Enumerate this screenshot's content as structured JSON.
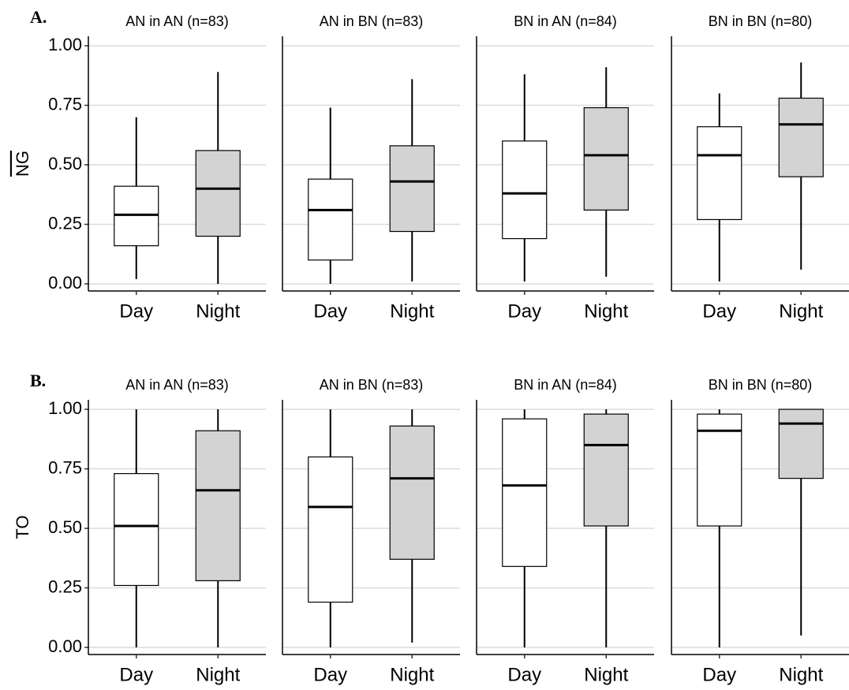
{
  "chart_data": [
    {
      "type": "box",
      "panel_label": "A.",
      "title": "AN in AN (n=83)",
      "ylabel": "NG",
      "categories": [
        "Day",
        "Night"
      ],
      "boxes": [
        {
          "color": "#ffffff",
          "min": 0.02,
          "q1": 0.16,
          "median": 0.29,
          "q3": 0.41,
          "max": 0.7
        },
        {
          "color": "#d3d3d3",
          "min": 0.0,
          "q1": 0.2,
          "median": 0.4,
          "q3": 0.56,
          "max": 0.89
        }
      ],
      "ylim": [
        -0.03,
        1.04
      ],
      "yticks": [
        {
          "value": 0,
          "label": "0.00"
        },
        {
          "value": 0.25,
          "label": "0.25"
        },
        {
          "value": 0.5,
          "label": "0.50"
        },
        {
          "value": 0.75,
          "label": "0.75"
        },
        {
          "value": 1,
          "label": "1.00"
        }
      ],
      "grid": true
    },
    {
      "type": "box",
      "title": "AN in BN (n=83)",
      "categories": [
        "Day",
        "Night"
      ],
      "boxes": [
        {
          "color": "#ffffff",
          "min": 0.0,
          "q1": 0.1,
          "median": 0.31,
          "q3": 0.44,
          "max": 0.74
        },
        {
          "color": "#d3d3d3",
          "min": 0.01,
          "q1": 0.22,
          "median": 0.43,
          "q3": 0.58,
          "max": 0.86
        }
      ],
      "ylim": [
        -0.03,
        1.04
      ],
      "yticks": [
        0,
        0.25,
        0.5,
        0.75,
        1
      ],
      "grid": true
    },
    {
      "type": "box",
      "title": "BN in AN (n=84)",
      "categories": [
        "Day",
        "Night"
      ],
      "boxes": [
        {
          "color": "#ffffff",
          "min": 0.01,
          "q1": 0.19,
          "median": 0.38,
          "q3": 0.6,
          "max": 0.88
        },
        {
          "color": "#d3d3d3",
          "min": 0.03,
          "q1": 0.31,
          "median": 0.54,
          "q3": 0.74,
          "max": 0.91
        }
      ],
      "ylim": [
        -0.03,
        1.04
      ],
      "yticks": [
        0,
        0.25,
        0.5,
        0.75,
        1
      ],
      "grid": true
    },
    {
      "type": "box",
      "title": "BN in BN (n=80)",
      "categories": [
        "Day",
        "Night"
      ],
      "boxes": [
        {
          "color": "#ffffff",
          "min": 0.01,
          "q1": 0.27,
          "median": 0.54,
          "q3": 0.66,
          "max": 0.8
        },
        {
          "color": "#d3d3d3",
          "min": 0.06,
          "q1": 0.45,
          "median": 0.67,
          "q3": 0.78,
          "max": 0.93
        }
      ],
      "ylim": [
        -0.03,
        1.04
      ],
      "yticks": [
        0,
        0.25,
        0.5,
        0.75,
        1
      ],
      "grid": true
    },
    {
      "type": "box",
      "panel_label": "B.",
      "title": "AN in AN (n=83)",
      "ylabel": "TO",
      "categories": [
        "Day",
        "Night"
      ],
      "boxes": [
        {
          "color": "#ffffff",
          "min": 0.0,
          "q1": 0.26,
          "median": 0.51,
          "q3": 0.73,
          "max": 1.0
        },
        {
          "color": "#d3d3d3",
          "min": 0.0,
          "q1": 0.28,
          "median": 0.66,
          "q3": 0.91,
          "max": 1.0
        }
      ],
      "ylim": [
        -0.03,
        1.04
      ],
      "yticks": [
        {
          "value": 0,
          "label": "0.00"
        },
        {
          "value": 0.25,
          "label": "0.25"
        },
        {
          "value": 0.5,
          "label": "0.50"
        },
        {
          "value": 0.75,
          "label": "0.75"
        },
        {
          "value": 1,
          "label": "1.00"
        }
      ],
      "grid": true
    },
    {
      "type": "box",
      "title": "AN in BN (n=83)",
      "categories": [
        "Day",
        "Night"
      ],
      "boxes": [
        {
          "color": "#ffffff",
          "min": 0.0,
          "q1": 0.19,
          "median": 0.59,
          "q3": 0.8,
          "max": 1.0
        },
        {
          "color": "#d3d3d3",
          "min": 0.02,
          "q1": 0.37,
          "median": 0.71,
          "q3": 0.93,
          "max": 1.0
        }
      ],
      "ylim": [
        -0.03,
        1.04
      ],
      "yticks": [
        0,
        0.25,
        0.5,
        0.75,
        1
      ],
      "grid": true
    },
    {
      "type": "box",
      "title": "BN in AN (n=84)",
      "categories": [
        "Day",
        "Night"
      ],
      "boxes": [
        {
          "color": "#ffffff",
          "min": 0.0,
          "q1": 0.34,
          "median": 0.68,
          "q3": 0.96,
          "max": 1.0
        },
        {
          "color": "#d3d3d3",
          "min": 0.0,
          "q1": 0.51,
          "median": 0.85,
          "q3": 0.98,
          "max": 1.0
        }
      ],
      "ylim": [
        -0.03,
        1.04
      ],
      "yticks": [
        0,
        0.25,
        0.5,
        0.75,
        1
      ],
      "grid": true
    },
    {
      "type": "box",
      "title": "BN in BN (n=80)",
      "categories": [
        "Day",
        "Night"
      ],
      "boxes": [
        {
          "color": "#ffffff",
          "min": 0.0,
          "q1": 0.51,
          "median": 0.91,
          "q3": 0.98,
          "max": 1.0
        },
        {
          "color": "#d3d3d3",
          "min": 0.05,
          "q1": 0.71,
          "median": 0.94,
          "q3": 1.0,
          "max": 1.0
        }
      ],
      "ylim": [
        -0.03,
        1.04
      ],
      "yticks": [
        0,
        0.25,
        0.5,
        0.75,
        1
      ],
      "grid": true
    }
  ]
}
